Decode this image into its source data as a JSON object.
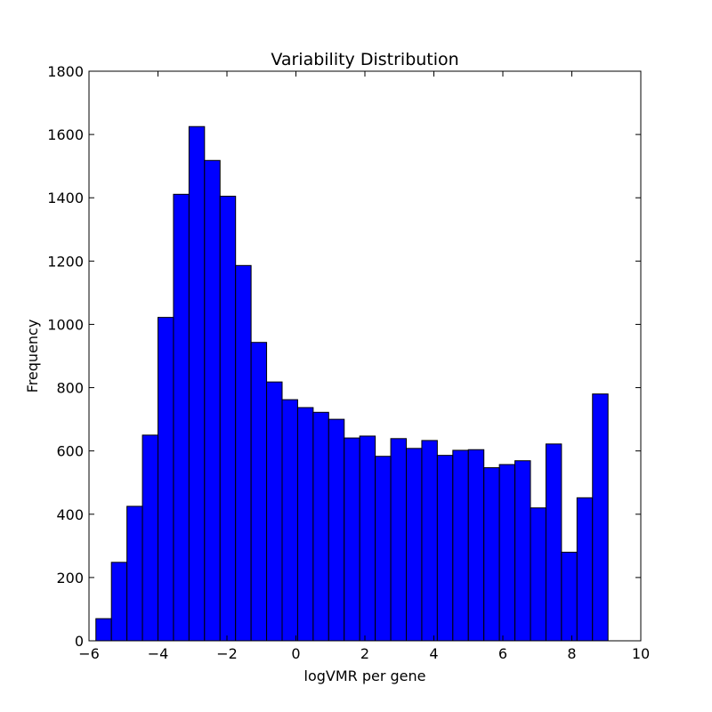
{
  "chart_data": {
    "type": "bar",
    "title": "Variability Distribution",
    "xlabel": "logVMR per gene",
    "ylabel": "Frequency",
    "xlim": [
      -6,
      10
    ],
    "ylim": [
      0,
      1800
    ],
    "x_ticks": [
      -6,
      -4,
      -2,
      0,
      2,
      4,
      6,
      8,
      10
    ],
    "x_tick_labels": [
      "−6",
      "−4",
      "−2",
      "0",
      "2",
      "4",
      "6",
      "8",
      "10"
    ],
    "y_ticks": [
      0,
      200,
      400,
      600,
      800,
      1000,
      1200,
      1400,
      1600,
      1800
    ],
    "y_tick_labels": [
      "0",
      "200",
      "400",
      "600",
      "800",
      "1000",
      "1200",
      "1400",
      "1600",
      "1800"
    ],
    "grid": false,
    "bar_color": "#0000ff",
    "bar_edge_color": "#000000",
    "bin_edges": [
      -5.8,
      -5.35,
      -4.9,
      -4.45,
      -4.0,
      -3.55,
      -3.1,
      -2.65,
      -2.2,
      -1.75,
      -1.3,
      -0.85,
      -0.4,
      0.05,
      0.5,
      0.95,
      1.4,
      1.85,
      2.3,
      2.75,
      3.2,
      3.65,
      4.1,
      4.55,
      5.0,
      5.45,
      5.9,
      6.35,
      6.8,
      7.25,
      7.7,
      8.15,
      8.6,
      9.05
    ],
    "values": [
      70,
      248,
      425,
      650,
      1022,
      1411,
      1625,
      1518,
      1405,
      1186,
      943,
      818,
      762,
      737,
      722,
      700,
      641,
      647,
      583,
      639,
      608,
      633,
      586,
      602,
      604,
      547,
      557,
      569,
      420,
      622,
      280,
      452,
      780
    ]
  }
}
